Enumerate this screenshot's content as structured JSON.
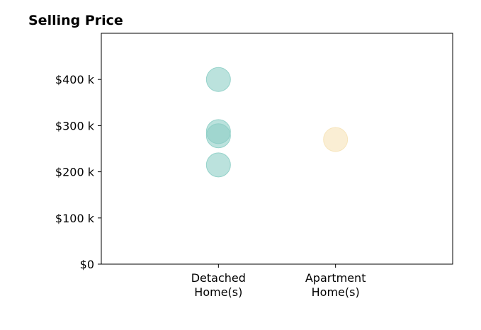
{
  "chart_data": {
    "type": "scatter",
    "title": "Selling Price",
    "xlabel": "",
    "ylabel": "",
    "categories": [
      "Detached\nHome(s)",
      "Apartment\nHome(s)"
    ],
    "yticks": [
      {
        "value": 0,
        "label": "$0"
      },
      {
        "value": 100000,
        "label": "$100 k"
      },
      {
        "value": 200000,
        "label": "$200 k"
      },
      {
        "value": 300000,
        "label": "$300 k"
      },
      {
        "value": 400000,
        "label": "$400 k"
      }
    ],
    "ylim": [
      0,
      500000
    ],
    "grid": false,
    "series": [
      {
        "category": "Detached\nHome(s)",
        "color": "#8ecfc7",
        "values": [
          400000,
          287000,
          278000,
          215000
        ]
      },
      {
        "category": "Apartment\nHome(s)",
        "color": "#f6e3b8",
        "values": [
          270000
        ]
      }
    ]
  }
}
